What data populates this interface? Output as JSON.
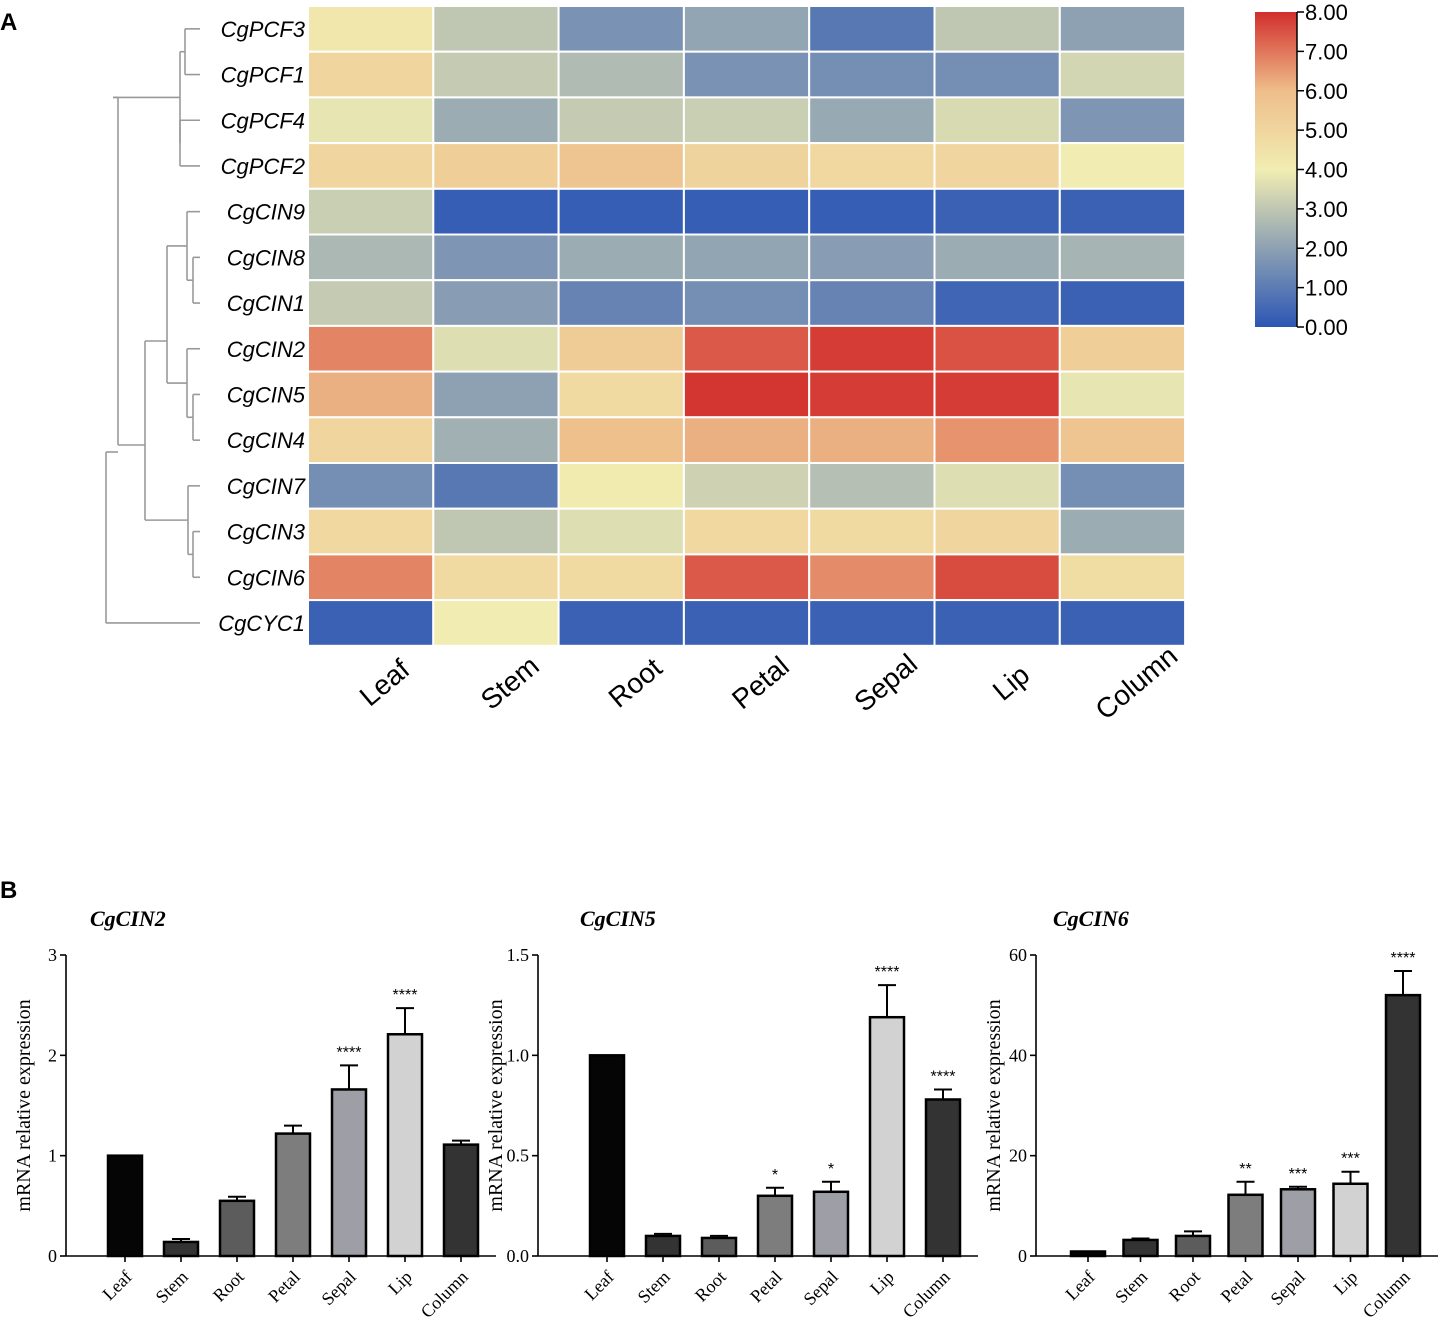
{
  "panels": {
    "a": "A",
    "b": "B"
  },
  "chart_data": [
    {
      "type": "heatmap",
      "title": "",
      "rows": [
        "CgPCF3",
        "CgPCF1",
        "CgPCF4",
        "CgPCF2",
        "CgCIN9",
        "CgCIN8",
        "CgCIN1",
        "CgCIN2",
        "CgCIN5",
        "CgCIN4",
        "CgCIN7",
        "CgCIN3",
        "CgCIN6",
        "CgCYC1"
      ],
      "columns": [
        "Leaf",
        "Stem",
        "Root",
        "Petal",
        "Sepal",
        "Lip",
        "Column"
      ],
      "values": [
        [
          4.3,
          3.0,
          1.6,
          2.1,
          0.9,
          3.0,
          2.0
        ],
        [
          5.0,
          3.1,
          2.7,
          1.6,
          1.5,
          1.5,
          3.4
        ],
        [
          3.8,
          2.3,
          3.1,
          3.2,
          2.2,
          3.5,
          1.7
        ],
        [
          5.0,
          5.3,
          5.7,
          5.1,
          4.9,
          5.0,
          4.0
        ],
        [
          3.2,
          0.2,
          0.2,
          0.2,
          0.2,
          0.3,
          0.3
        ],
        [
          2.6,
          1.7,
          2.3,
          2.1,
          1.9,
          2.3,
          2.5
        ],
        [
          3.1,
          1.9,
          1.2,
          1.5,
          1.2,
          0.4,
          0.3
        ],
        [
          6.8,
          3.6,
          5.4,
          7.4,
          7.8,
          7.5,
          5.3
        ],
        [
          6.2,
          2.0,
          4.8,
          7.9,
          7.8,
          7.8,
          3.8
        ],
        [
          5.0,
          2.4,
          5.9,
          6.2,
          6.2,
          6.6,
          5.7
        ],
        [
          1.5,
          0.9,
          4.1,
          3.3,
          2.8,
          3.6,
          1.5
        ],
        [
          4.9,
          3.0,
          3.6,
          4.9,
          4.8,
          5.0,
          2.3
        ],
        [
          6.8,
          4.8,
          4.8,
          7.4,
          6.7,
          7.6,
          4.7
        ],
        [
          0.3,
          4.0,
          0.3,
          0.3,
          0.3,
          0.3,
          0.3
        ]
      ],
      "colorbar": {
        "ticks": [
          "8.00",
          "7.00",
          "6.00",
          "5.00",
          "4.00",
          "3.00",
          "2.00",
          "1.00",
          "0.00"
        ],
        "range": [
          0,
          8
        ],
        "colors": [
          "#2c56b4",
          "#8da1b3",
          "#f1edb2",
          "#eebe8a",
          "#d22e2c"
        ]
      },
      "dendrogram": "hierarchical clustering of rows"
    },
    {
      "type": "bar",
      "title": "CgCIN2",
      "ylabel": "mRNA relative expression",
      "categories": [
        "Leaf",
        "Stem",
        "Root",
        "Petal",
        "Sepal",
        "Lip",
        "Column"
      ],
      "values": [
        1.0,
        0.14,
        0.55,
        1.22,
        1.66,
        2.21,
        1.11
      ],
      "errors": [
        0.0,
        0.03,
        0.04,
        0.08,
        0.24,
        0.26,
        0.04
      ],
      "significance": [
        "",
        "",
        "",
        "",
        "****",
        "****",
        ""
      ],
      "ylim": [
        0,
        3
      ],
      "yticks": [
        "0",
        "1",
        "2",
        "3"
      ],
      "colors": [
        "#050505",
        "#333333",
        "#5c5c5c",
        "#7d7d7d",
        "#9e9ea6",
        "#d2d2d2",
        "#333333"
      ]
    },
    {
      "type": "bar",
      "title": "CgCIN5",
      "ylabel": "mRNA relative expression",
      "categories": [
        "Leaf",
        "Stem",
        "Root",
        "Petal",
        "Sepal",
        "Lip",
        "Column"
      ],
      "values": [
        1.0,
        0.1,
        0.09,
        0.3,
        0.32,
        1.19,
        0.78
      ],
      "errors": [
        0.0,
        0.01,
        0.01,
        0.04,
        0.05,
        0.16,
        0.05
      ],
      "significance": [
        "",
        "",
        "",
        "*",
        "*",
        "****",
        "****"
      ],
      "ylim": [
        0,
        1.5
      ],
      "yticks": [
        "0.0",
        "0.5",
        "1.0",
        "1.5"
      ],
      "colors": [
        "#050505",
        "#333333",
        "#5c5c5c",
        "#7d7d7d",
        "#9e9ea6",
        "#d2d2d2",
        "#333333"
      ]
    },
    {
      "type": "bar",
      "title": "CgCIN6",
      "ylabel": "mRNA relative expression",
      "categories": [
        "Leaf",
        "Stem",
        "Root",
        "Petal",
        "Sepal",
        "Lip",
        "Column"
      ],
      "values": [
        0.9,
        3.2,
        4.0,
        12.2,
        13.3,
        14.4,
        52.0
      ],
      "errors": [
        0.0,
        0.3,
        0.9,
        2.6,
        0.5,
        2.4,
        4.8
      ],
      "significance": [
        "",
        "",
        "",
        "**",
        "***",
        "***",
        "****"
      ],
      "ylim": [
        0,
        60
      ],
      "yticks": [
        "0",
        "20",
        "40",
        "60"
      ],
      "colors": [
        "#050505",
        "#333333",
        "#5c5c5c",
        "#7d7d7d",
        "#9e9ea6",
        "#d2d2d2",
        "#333333"
      ]
    }
  ]
}
